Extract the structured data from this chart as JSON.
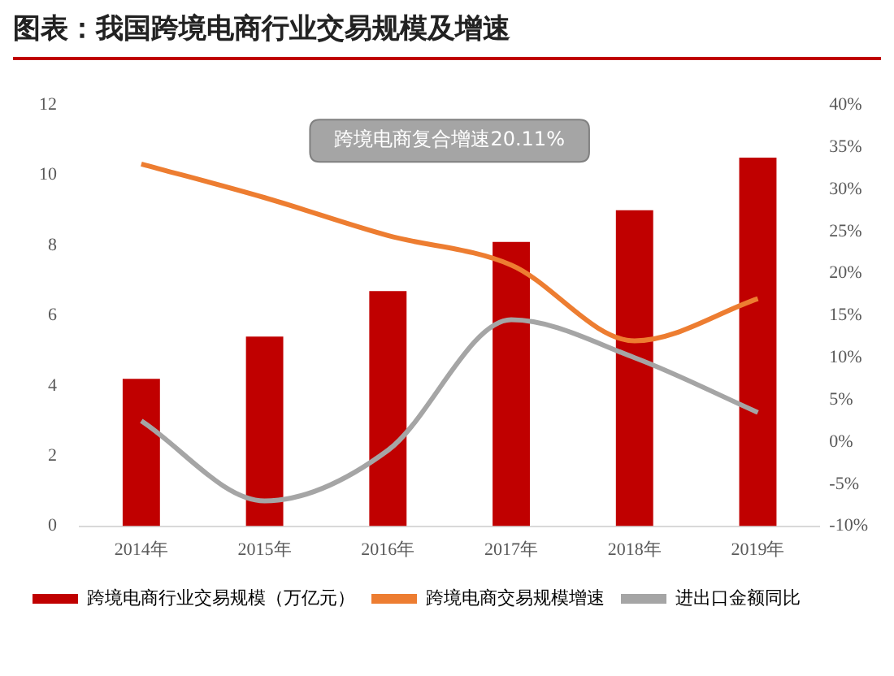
{
  "chart_data": {
    "type": "bar",
    "title": "图表：我国跨境电商行业交易规模及增速",
    "categories": [
      "2014年",
      "2015年",
      "2016年",
      "2017年",
      "2018年",
      "2019年"
    ],
    "series": [
      {
        "name": "跨境电商行业交易规模（万亿元）",
        "color": "#c00000",
        "values": [
          4.2,
          5.4,
          6.7,
          8.1,
          9.0,
          10.5
        ]
      },
      {
        "name": "跨境电商交易规模增速",
        "type": "line",
        "axis": "y2",
        "color": "#ed7d31",
        "values": [
          33,
          29,
          24.5,
          21,
          12,
          17
        ]
      },
      {
        "name": "进出口金额同比",
        "type": "line",
        "axis": "y2",
        "color": "#a5a5a5",
        "values": [
          2.5,
          -7,
          -1,
          14.5,
          10,
          3.5
        ]
      }
    ],
    "ylim": [
      0,
      12
    ],
    "yticks": [
      0,
      2,
      4,
      6,
      8,
      10,
      12
    ],
    "y2lim": [
      -10,
      40
    ],
    "y2ticks": [
      {
        "value": -10,
        "label": "-10%"
      },
      {
        "value": -5,
        "label": "-5%"
      },
      {
        "value": 0,
        "label": "0%"
      },
      {
        "value": 5,
        "label": "5%"
      },
      {
        "value": 10,
        "label": "10%"
      },
      {
        "value": 15,
        "label": "15%"
      },
      {
        "value": 20,
        "label": "20%"
      },
      {
        "value": 25,
        "label": "25%"
      },
      {
        "value": 30,
        "label": "30%"
      },
      {
        "value": 35,
        "label": "35%"
      },
      {
        "value": 40,
        "label": "40%"
      }
    ],
    "annotations": [
      "跨境电商复合增速20.11%"
    ],
    "legend": "bottom",
    "grid": false
  }
}
